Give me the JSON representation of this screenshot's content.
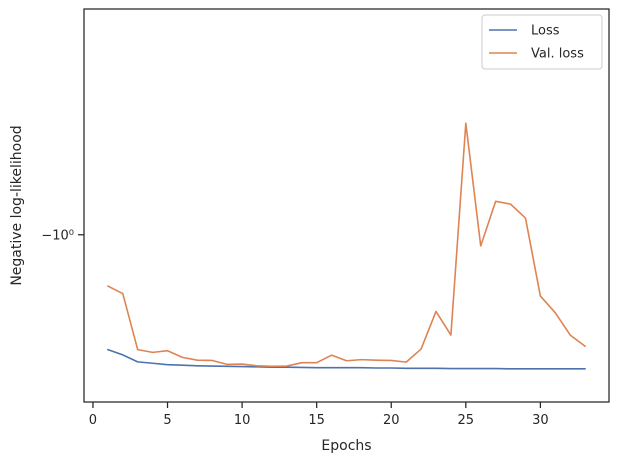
{
  "chart_data": {
    "type": "line",
    "xlabel": "Epochs",
    "ylabel": "Negative log-likelihood",
    "xlim": [
      -0.6,
      34.6
    ],
    "ylim": [
      -0.94,
      -1.081
    ],
    "y_scale": "symlog (inverted, negative values)",
    "xticks": [
      0,
      5,
      10,
      15,
      20,
      25,
      30
    ],
    "yticks": [
      {
        "value": -1.0,
        "label": "−10⁰"
      }
    ],
    "grid": false,
    "legend": {
      "position": "top-right",
      "entries": [
        "Loss",
        "Val. loss"
      ]
    },
    "x": [
      1,
      2,
      3,
      4,
      5,
      6,
      7,
      8,
      9,
      10,
      11,
      12,
      13,
      14,
      15,
      16,
      17,
      18,
      19,
      20,
      21,
      22,
      23,
      24,
      25,
      26,
      27,
      28,
      29,
      30,
      31,
      32,
      33
    ],
    "series": [
      {
        "name": "Loss",
        "color": "#4c72b0",
        "values": [
          -0.9588,
          -0.9569,
          -0.9544,
          -0.9539,
          -0.9534,
          -0.9532,
          -0.953,
          -0.9529,
          -0.9528,
          -0.9527,
          -0.9526,
          -0.9525,
          -0.9525,
          -0.9524,
          -0.9523,
          -0.9523,
          -0.9523,
          -0.9523,
          -0.9522,
          -0.9522,
          -0.9521,
          -0.9521,
          -0.9521,
          -0.952,
          -0.952,
          -0.952,
          -0.952,
          -0.9519,
          -0.9519,
          -0.9519,
          -0.9519,
          -0.9519,
          -0.9519
        ]
      },
      {
        "name": "Val. loss",
        "color": "#dd8452",
        "values": [
          -0.9816,
          -0.9789,
          -0.9588,
          -0.9578,
          -0.9584,
          -0.956,
          -0.955,
          -0.9549,
          -0.9535,
          -0.9536,
          -0.953,
          -0.9528,
          -0.9529,
          -0.9541,
          -0.9541,
          -0.9568,
          -0.9548,
          -0.9552,
          -0.955,
          -0.9549,
          -0.9543,
          -0.959,
          -0.9725,
          -0.964,
          -1.04,
          -0.996,
          -1.012,
          -1.011,
          -1.006,
          -0.978,
          -0.972,
          -0.964,
          -0.96
        ]
      }
    ]
  }
}
